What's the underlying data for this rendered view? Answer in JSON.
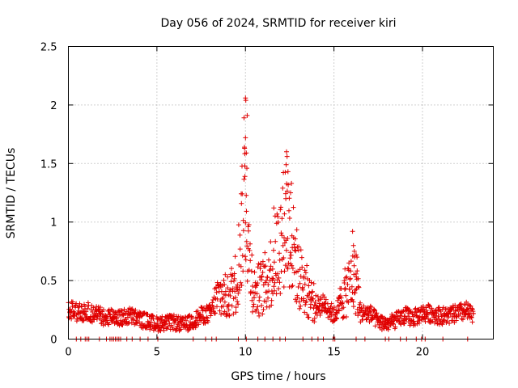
{
  "chart_data": {
    "type": "scatter",
    "title": "Day 056 of 2024, SRMTID for receiver kiri",
    "xlabel": "GPS time / hours",
    "ylabel": "SRMTID / TECUs",
    "xlim": [
      0,
      24
    ],
    "ylim": [
      0,
      2.5
    ],
    "grid": true,
    "marker": "plus",
    "color": "#e00000",
    "x_ticks": [
      0,
      5,
      10,
      15,
      20
    ],
    "x_tick_labels": [
      "0",
      "5",
      "10",
      "15",
      "20"
    ],
    "y_ticks": [
      0,
      0.5,
      1,
      1.5,
      2,
      2.5
    ],
    "y_tick_labels": [
      "0",
      "0.5",
      "1",
      "1.5",
      "2",
      "2.5"
    ],
    "profile": [
      [
        0.0,
        0.26
      ],
      [
        0.5,
        0.22
      ],
      [
        1.0,
        0.24
      ],
      [
        1.5,
        0.21
      ],
      [
        2.0,
        0.19
      ],
      [
        2.5,
        0.2
      ],
      [
        3.0,
        0.18
      ],
      [
        3.5,
        0.2
      ],
      [
        4.0,
        0.17
      ],
      [
        4.5,
        0.15
      ],
      [
        5.0,
        0.13
      ],
      [
        5.5,
        0.14
      ],
      [
        6.0,
        0.14
      ],
      [
        6.5,
        0.12
      ],
      [
        7.0,
        0.15
      ],
      [
        7.5,
        0.2
      ],
      [
        8.0,
        0.22
      ],
      [
        8.5,
        0.38
      ],
      [
        9.0,
        0.35
      ],
      [
        9.5,
        0.5
      ],
      [
        9.8,
        0.95
      ],
      [
        10.0,
        1.3
      ],
      [
        10.2,
        0.7
      ],
      [
        10.5,
        0.4
      ],
      [
        11.0,
        0.45
      ],
      [
        11.5,
        0.6
      ],
      [
        12.0,
        0.85
      ],
      [
        12.3,
        1.05
      ],
      [
        12.7,
        0.75
      ],
      [
        13.0,
        0.55
      ],
      [
        13.5,
        0.4
      ],
      [
        14.0,
        0.28
      ],
      [
        14.5,
        0.3
      ],
      [
        15.0,
        0.2
      ],
      [
        15.5,
        0.35
      ],
      [
        16.0,
        0.5
      ],
      [
        16.3,
        0.45
      ],
      [
        16.5,
        0.22
      ],
      [
        17.0,
        0.22
      ],
      [
        17.5,
        0.15
      ],
      [
        18.0,
        0.13
      ],
      [
        18.5,
        0.16
      ],
      [
        19.0,
        0.2
      ],
      [
        19.5,
        0.18
      ],
      [
        20.0,
        0.22
      ],
      [
        20.5,
        0.22
      ],
      [
        21.0,
        0.2
      ],
      [
        21.5,
        0.2
      ],
      [
        22.0,
        0.22
      ],
      [
        22.5,
        0.24
      ],
      [
        22.9,
        0.18
      ]
    ],
    "peaks": [
      {
        "x": 10.0,
        "y": 2.06
      },
      {
        "x": 10.02,
        "y": 2.04
      },
      {
        "x": 10.1,
        "y": 1.91
      },
      {
        "x": 9.92,
        "y": 1.89
      },
      {
        "x": 10.0,
        "y": 1.72
      },
      {
        "x": 9.95,
        "y": 1.63
      },
      {
        "x": 10.05,
        "y": 1.59
      },
      {
        "x": 10.08,
        "y": 1.46
      },
      {
        "x": 9.97,
        "y": 1.39
      },
      {
        "x": 12.32,
        "y": 1.6
      },
      {
        "x": 12.35,
        "y": 1.56
      },
      {
        "x": 12.3,
        "y": 1.49
      },
      {
        "x": 12.4,
        "y": 1.43
      },
      {
        "x": 12.6,
        "y": 1.33
      },
      {
        "x": 12.55,
        "y": 1.25
      },
      {
        "x": 12.28,
        "y": 1.2
      },
      {
        "x": 11.6,
        "y": 1.12
      },
      {
        "x": 12.2,
        "y": 1.07
      },
      {
        "x": 16.05,
        "y": 0.92
      },
      {
        "x": 16.1,
        "y": 0.8
      },
      {
        "x": 16.15,
        "y": 0.75
      },
      {
        "x": 16.25,
        "y": 0.72
      },
      {
        "x": 16.3,
        "y": 0.7
      }
    ],
    "zero_points": [
      0.45,
      0.7,
      0.95,
      1.05,
      1.15,
      1.75,
      2.15,
      2.35,
      2.45,
      2.55,
      2.65,
      2.75,
      2.85,
      2.95,
      3.3,
      3.6,
      4.05,
      4.5,
      5.05,
      7.05,
      7.75,
      8.1,
      8.35,
      9.6,
      10.05,
      10.7,
      11.1,
      11.55,
      11.95,
      12.25,
      13.25,
      13.75,
      14.1,
      14.4,
      14.95,
      15.05,
      16.25,
      16.75,
      17.9,
      18.1,
      18.75,
      19.1,
      19.65,
      19.95,
      20.15,
      21.15,
      22.55
    ]
  }
}
